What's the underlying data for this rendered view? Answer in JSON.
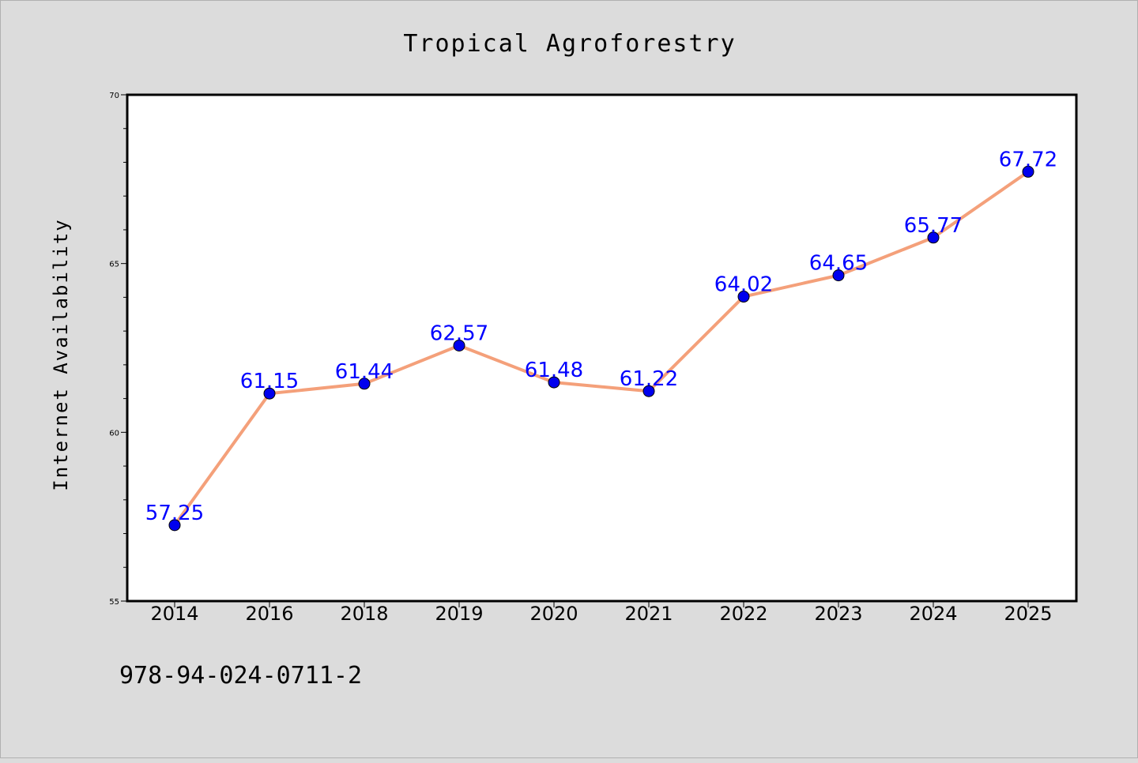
{
  "chart_data": {
    "type": "line",
    "title": "Tropical Agroforestry",
    "xlabel": "",
    "ylabel": "Internet Availability",
    "categories": [
      "2014",
      "2016",
      "2018",
      "2019",
      "2020",
      "2021",
      "2022",
      "2023",
      "2024",
      "2025"
    ],
    "series": [
      {
        "values": [
          57.25,
          61.15,
          61.44,
          62.57,
          61.48,
          61.22,
          64.02,
          64.65,
          65.77,
          67.72
        ],
        "labels": [
          "57.25",
          "61.15",
          "61.44",
          "62.57",
          "61.48",
          "61.22",
          "64.02",
          "64.65",
          "65.77",
          "67.72"
        ],
        "line_color": "#f4a07a",
        "marker_color": "#0000ee",
        "label_color": "#0000ff"
      }
    ],
    "ylim": [
      55,
      70
    ],
    "yticks": [
      "55",
      "60",
      "65",
      "70"
    ],
    "grid": false,
    "legend": "none"
  },
  "footer_text": "978-94-024-0711-2"
}
